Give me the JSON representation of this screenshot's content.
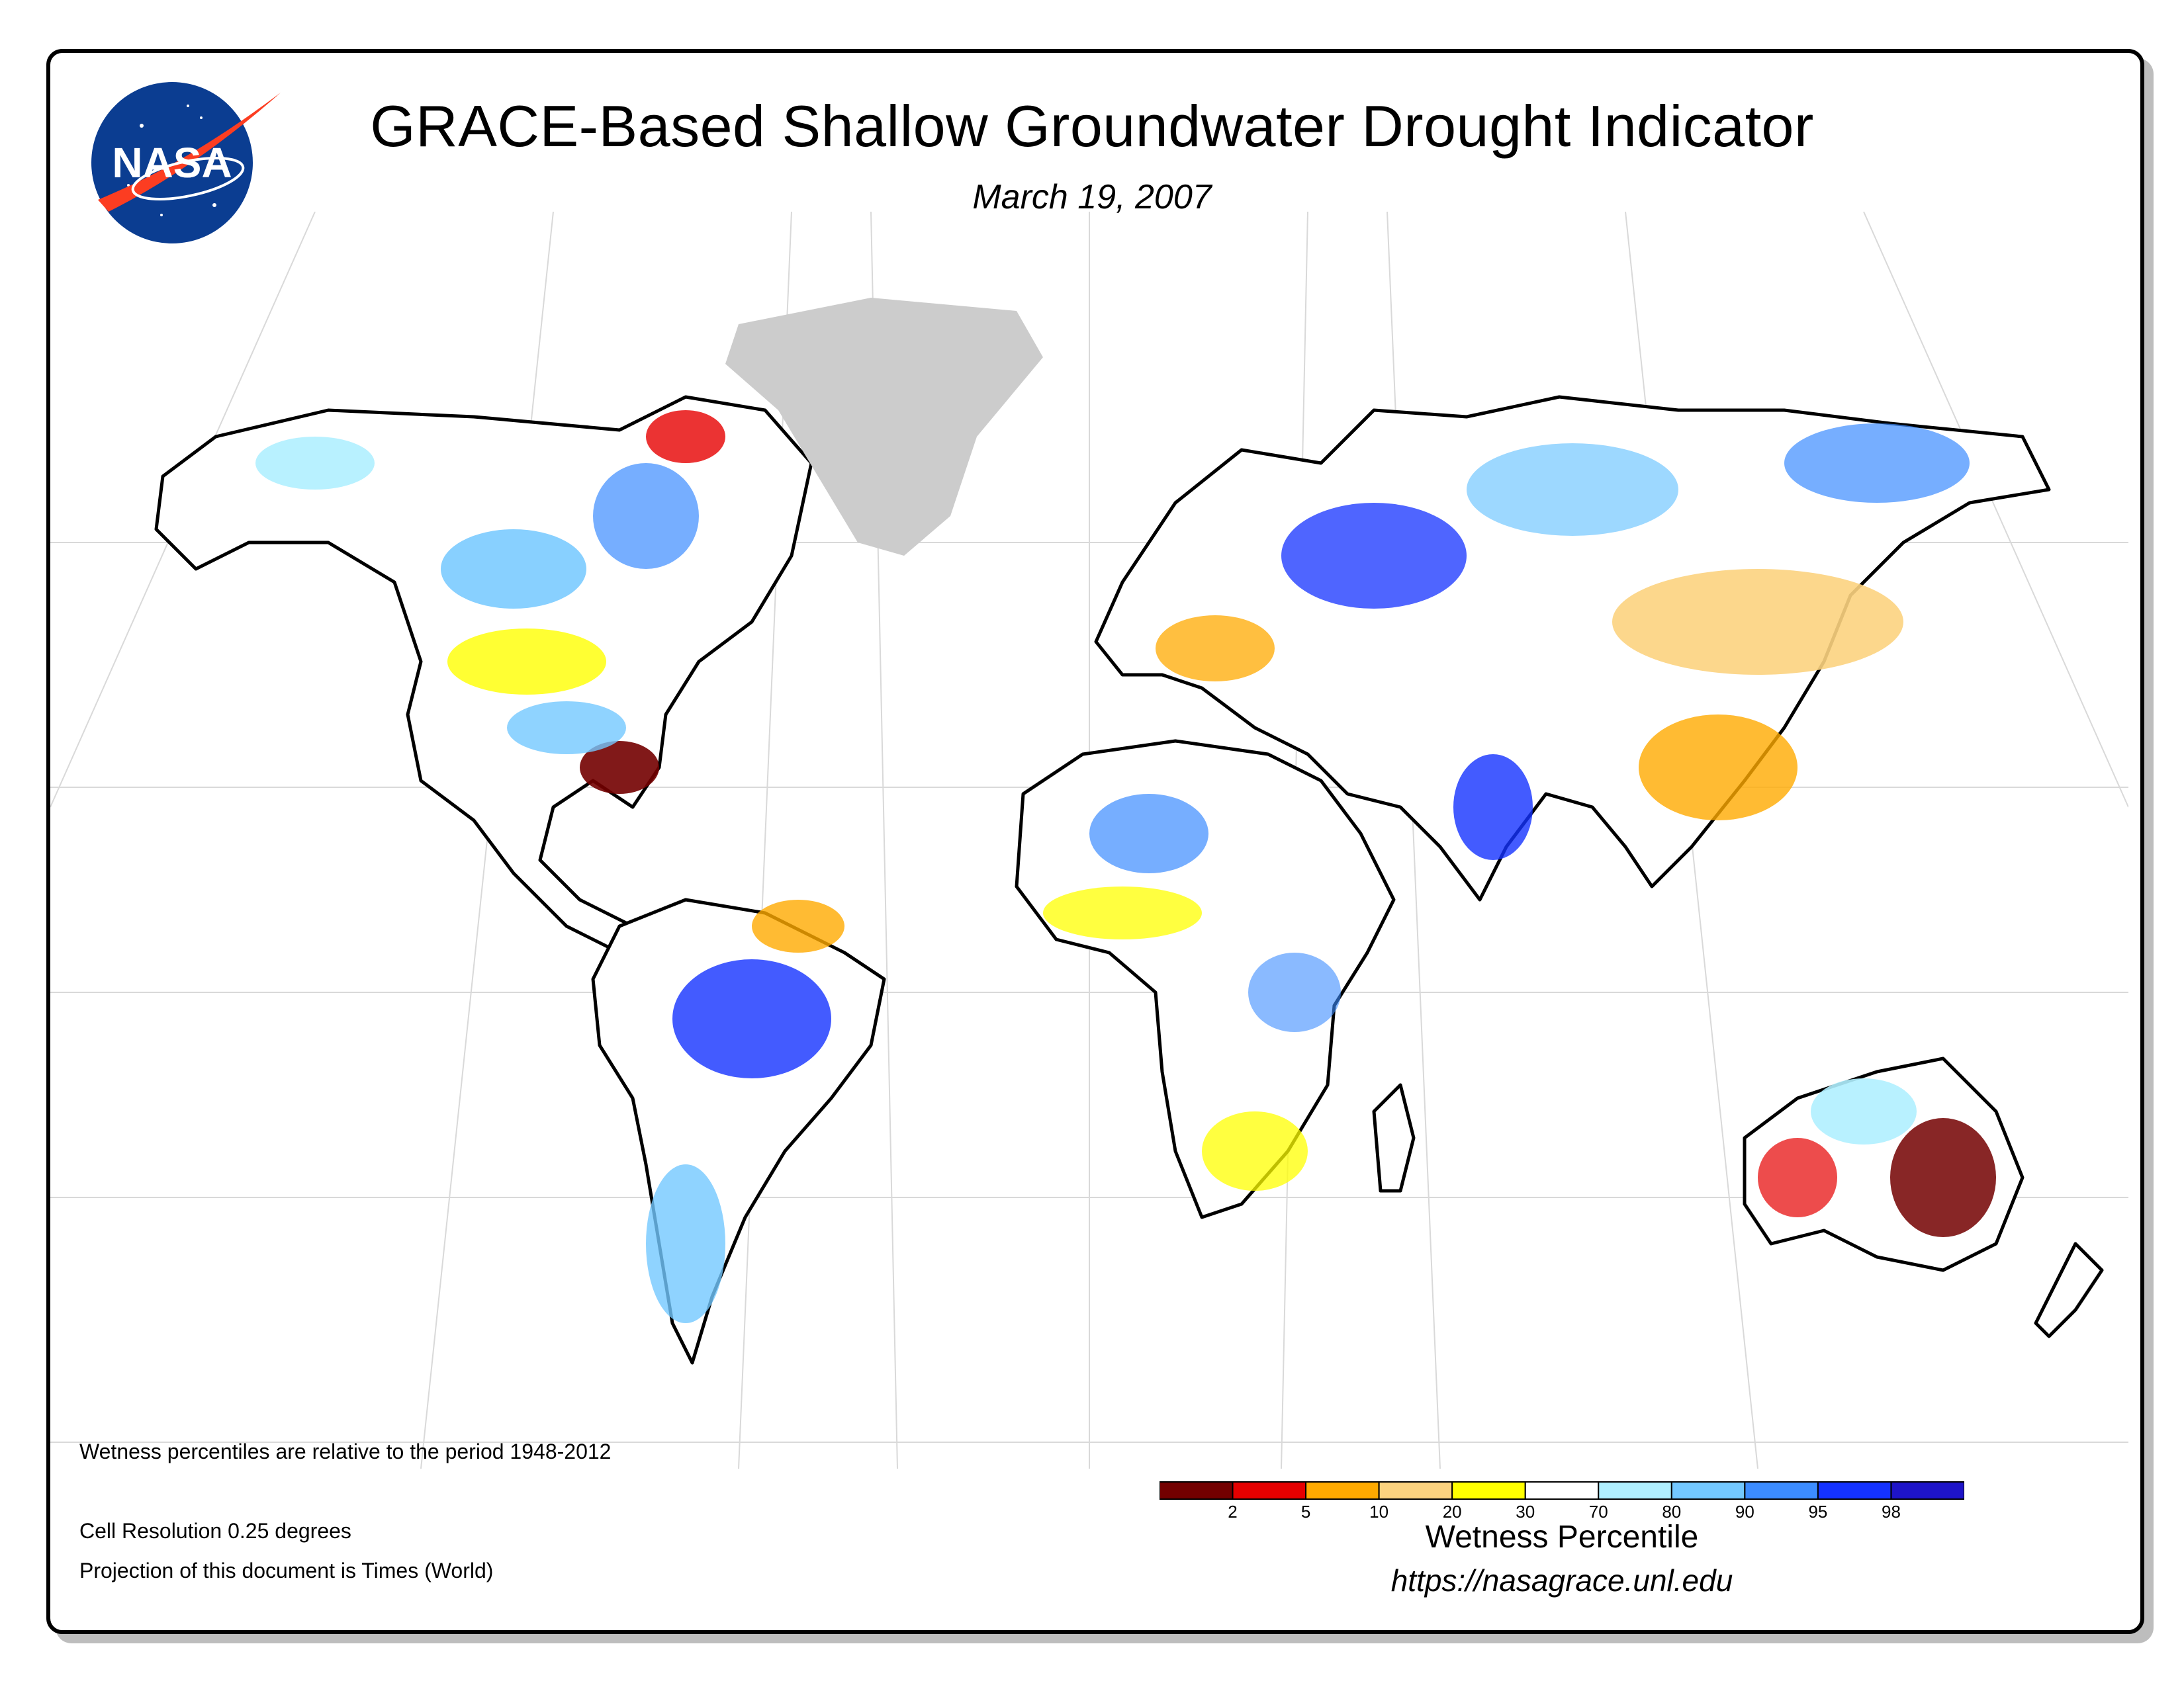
{
  "title": "GRACE-Based Shallow Groundwater Drought Indicator",
  "date": "March 19, 2007",
  "logo": {
    "text": "NASA",
    "colors": {
      "blue": "#0b3d91",
      "red": "#fc3d21"
    }
  },
  "notes": {
    "period": "Wetness percentiles are relative to the period 1948-2012",
    "resolution": "Cell Resolution 0.25 degrees",
    "projection": "Projection of this document is Times (World)"
  },
  "legend": {
    "title": "Wetness Percentile",
    "url": "https://nasagrace.unl.edu",
    "bins": [
      {
        "color": "#730000"
      },
      {
        "color": "#e60000"
      },
      {
        "color": "#ffaa00"
      },
      {
        "color": "#fcd37f"
      },
      {
        "color": "#ffff00"
      },
      {
        "color": "#ffffff"
      },
      {
        "color": "#b0f0ff"
      },
      {
        "color": "#73c8ff"
      },
      {
        "color": "#3c8cff"
      },
      {
        "color": "#1432ff"
      },
      {
        "color": "#1e14c8"
      }
    ],
    "tick_labels": [
      "2",
      "5",
      "10",
      "20",
      "30",
      "70",
      "80",
      "90",
      "95",
      "98"
    ]
  },
  "map": {
    "land_color": "#ffffff",
    "greenland_color": "#cccccc",
    "graticule_color": "#d9d9d9",
    "border_color": "#000000"
  }
}
